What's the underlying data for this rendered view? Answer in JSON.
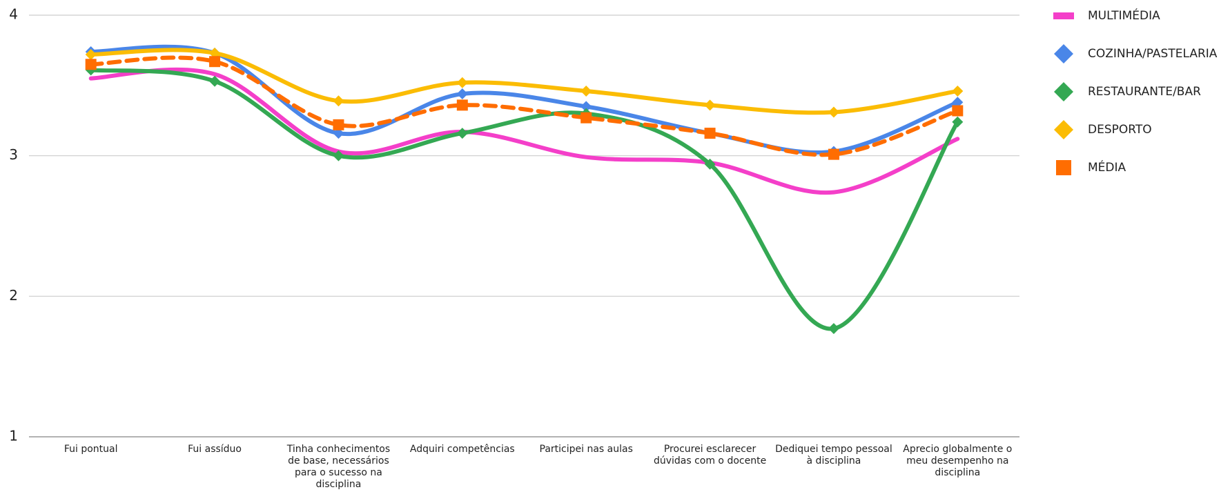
{
  "chart_data": {
    "type": "line",
    "categories": [
      "Fui pontual",
      "Fui assíduo",
      "Tinha conhecimentos de base, necessários para o sucesso na disciplina",
      "Adquiri competências",
      "Participei nas aulas",
      "Procurei esclarecer dúvidas com o docente",
      "Dediquei tempo pessoal à disciplina",
      "Aprecio globalmente o meu desempenho na disciplina"
    ],
    "series": [
      {
        "name": "MULTIMÉDIA",
        "color": "#f43fc9",
        "marker": "none",
        "values": [
          3.55,
          3.58,
          3.03,
          3.17,
          2.99,
          2.95,
          2.74,
          3.12
        ]
      },
      {
        "name": "COZINHA/PASTELARIA",
        "color": "#4a86e8",
        "marker": "diamond",
        "values": [
          3.74,
          3.73,
          3.16,
          3.44,
          3.35,
          3.16,
          3.03,
          3.38
        ]
      },
      {
        "name": "RESTAURANTE/BAR",
        "color": "#34a853",
        "marker": "diamond",
        "values": [
          3.61,
          3.53,
          3.0,
          3.16,
          3.3,
          2.94,
          1.77,
          3.24
        ]
      },
      {
        "name": "DESPORTO",
        "color": "#fbbc04",
        "marker": "diamond",
        "values": [
          3.72,
          3.73,
          3.39,
          3.52,
          3.46,
          3.36,
          3.31,
          3.46
        ]
      },
      {
        "name": "MÉDIA",
        "color": "#ff6d01",
        "marker": "square",
        "dashed": true,
        "values": [
          3.65,
          3.67,
          3.22,
          3.36,
          3.27,
          3.16,
          3.01,
          3.32
        ]
      }
    ],
    "ylim": [
      1,
      4
    ],
    "yticks": [
      1,
      2,
      3,
      4
    ],
    "grid": true,
    "legend": "right"
  }
}
